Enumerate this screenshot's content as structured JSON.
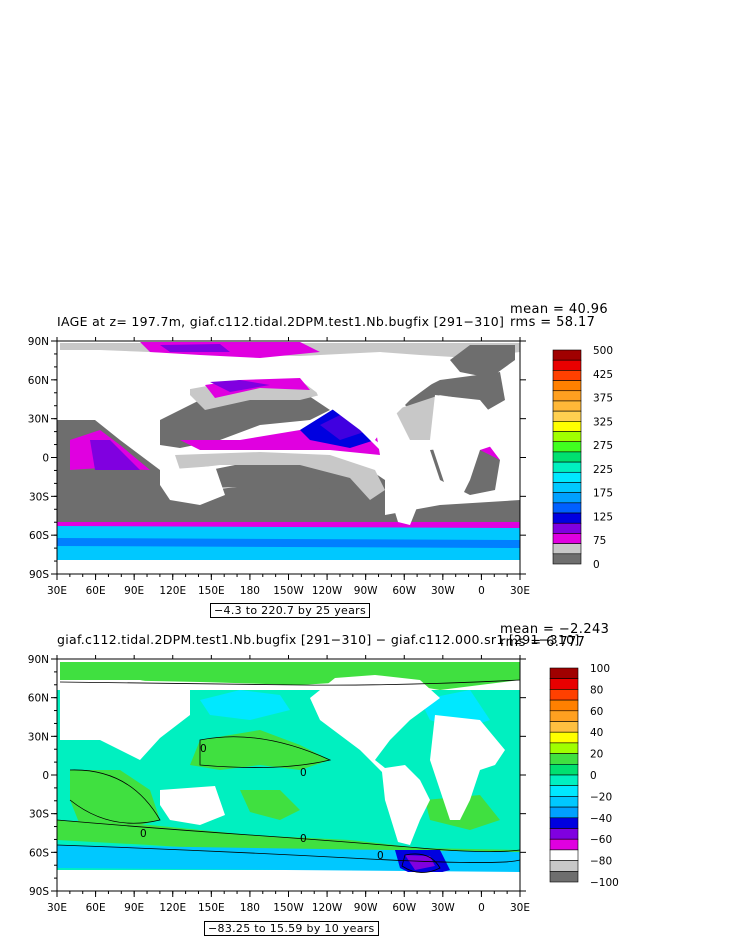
{
  "chart_data": [
    {
      "type": "heatmap",
      "title": "IAGE at z= 197.7m, giaf.c112.tidal.2DPM.test1.Nb.bugfix [291−310]",
      "mean_text": "mean = 40.96",
      "rms_text": "rms = 58.17",
      "range_text": "−4.3 to 220.7 by 25 years",
      "xlim": [
        30,
        390
      ],
      "ylim": [
        -90,
        90
      ],
      "x_ticks": [
        "30E",
        "60E",
        "90E",
        "120E",
        "150E",
        "180",
        "150W",
        "120W",
        "90W",
        "60W",
        "30W",
        "0",
        "30E"
      ],
      "y_ticks": [
        "90N",
        "60N",
        "30N",
        "0",
        "30S",
        "60S",
        "90S"
      ],
      "colorbar": {
        "labels": [
          "500",
          "425",
          "375",
          "325",
          "275",
          "225",
          "175",
          "125",
          "75",
          "0"
        ],
        "colors": [
          "#a00000",
          "#e80000",
          "#ff4000",
          "#ff8000",
          "#ffa020",
          "#ffb838",
          "#ffd050",
          "#ffff00",
          "#a0ff00",
          "#40ff20",
          "#00e070",
          "#00f0c0",
          "#00e8ff",
          "#00c8ff",
          "#00a0ff",
          "#0060ff",
          "#0000e0",
          "#8000e0",
          "#e000e0",
          "#c8c8c8",
          "#6e6e6e"
        ]
      }
    },
    {
      "type": "heatmap",
      "title": "giaf.c112.tidal.2DPM.test1.Nb.bugfix [291−310] − giaf.c112.000.sr1 [291−310]",
      "mean_text": "mean = −2.243",
      "rms_text": "rms = 6.777",
      "range_text": "−83.25 to 15.59 by 10 years",
      "xlim": [
        30,
        390
      ],
      "ylim": [
        -90,
        90
      ],
      "x_ticks": [
        "30E",
        "60E",
        "90E",
        "120E",
        "150E",
        "180",
        "150W",
        "120W",
        "90W",
        "60W",
        "30W",
        "0",
        "30E"
      ],
      "y_ticks": [
        "90N",
        "60N",
        "30N",
        "0",
        "30S",
        "60S",
        "90S"
      ],
      "contour_label": "0",
      "colorbar": {
        "labels": [
          "100",
          "80",
          "60",
          "40",
          "20",
          "0",
          "−20",
          "−40",
          "−60",
          "−80",
          "−100"
        ],
        "colors": [
          "#a00000",
          "#e80000",
          "#ff4000",
          "#ff8000",
          "#ffa020",
          "#ffc040",
          "#ffff00",
          "#a0ff00",
          "#40e040",
          "#00e070",
          "#00f0c0",
          "#00e8ff",
          "#00c8ff",
          "#00a0ff",
          "#0000e0",
          "#8000e0",
          "#e000e0",
          "#ffffff",
          "#c8c8c8",
          "#6e6e6e"
        ]
      }
    }
  ]
}
